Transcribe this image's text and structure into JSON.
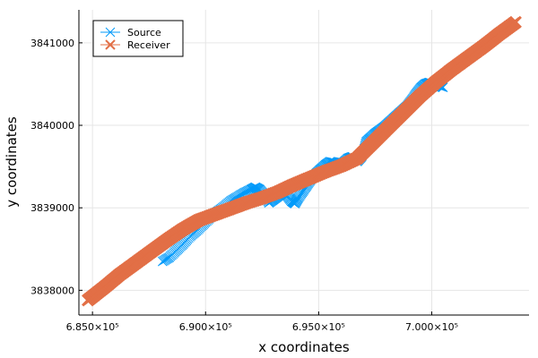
{
  "chart_data": {
    "type": "scatter",
    "xlabel": "x coordinates",
    "ylabel": "y coordinates",
    "xlim": [
      684400,
      704300
    ],
    "ylim": [
      3837700,
      3841400
    ],
    "x_ticks": [
      {
        "value": 685000,
        "label": "6.850×10⁵"
      },
      {
        "value": 690000,
        "label": "6.900×10⁵"
      },
      {
        "value": 695000,
        "label": "6.950×10⁵"
      },
      {
        "value": 700000,
        "label": "7.000×10⁵"
      }
    ],
    "y_ticks": [
      {
        "value": 3838000,
        "label": "3838000"
      },
      {
        "value": 3839000,
        "label": "3839000"
      },
      {
        "value": 3840000,
        "label": "3840000"
      },
      {
        "value": 3841000,
        "label": "3841000"
      }
    ],
    "grid": true,
    "legend_position": "top-left",
    "series": [
      {
        "name": "Source",
        "color": "#009AFA",
        "marker": "x",
        "x_range": [
          688100,
          700600
        ],
        "points": [
          [
            688100,
            3838350
          ],
          [
            688400,
            3838400
          ],
          [
            688700,
            3838480
          ],
          [
            689000,
            3838560
          ],
          [
            689300,
            3838650
          ],
          [
            689600,
            3838720
          ],
          [
            689900,
            3838800
          ],
          [
            690200,
            3838880
          ],
          [
            690500,
            3838950
          ],
          [
            690800,
            3839010
          ],
          [
            691100,
            3839080
          ],
          [
            691400,
            3839130
          ],
          [
            691700,
            3839180
          ],
          [
            692000,
            3839220
          ],
          [
            692200,
            3839250
          ],
          [
            692400,
            3839220
          ],
          [
            692600,
            3839150
          ],
          [
            692800,
            3839060
          ],
          [
            693000,
            3839100
          ],
          [
            693200,
            3839140
          ],
          [
            693400,
            3839180
          ],
          [
            693600,
            3839150
          ],
          [
            693800,
            3839080
          ],
          [
            693950,
            3839050
          ],
          [
            694100,
            3839120
          ],
          [
            694300,
            3839200
          ],
          [
            694500,
            3839280
          ],
          [
            694700,
            3839360
          ],
          [
            694900,
            3839420
          ],
          [
            695100,
            3839470
          ],
          [
            695300,
            3839520
          ],
          [
            695500,
            3839560
          ],
          [
            695700,
            3839550
          ],
          [
            695900,
            3839520
          ],
          [
            696100,
            3839550
          ],
          [
            696300,
            3839600
          ],
          [
            696500,
            3839620
          ],
          [
            696700,
            3839560
          ],
          [
            696900,
            3839620
          ],
          [
            697000,
            3839700
          ],
          [
            697100,
            3839800
          ],
          [
            697300,
            3839850
          ],
          [
            697500,
            3839900
          ],
          [
            697700,
            3839940
          ],
          [
            697900,
            3839980
          ],
          [
            698100,
            3840030
          ],
          [
            698300,
            3840080
          ],
          [
            698500,
            3840130
          ],
          [
            698700,
            3840180
          ],
          [
            698900,
            3840230
          ],
          [
            699100,
            3840300
          ],
          [
            699300,
            3840380
          ],
          [
            699500,
            3840450
          ],
          [
            699700,
            3840500
          ],
          [
            699900,
            3840520
          ],
          [
            700100,
            3840500
          ],
          [
            700300,
            3840480
          ],
          [
            700500,
            3840460
          ]
        ]
      },
      {
        "name": "Receiver",
        "color": "#E26F46",
        "marker": "x",
        "x_range": [
          684800,
          703700
        ],
        "points": [
          [
            684800,
            3837880
          ],
          [
            685500,
            3838030
          ],
          [
            686200,
            3838190
          ],
          [
            686900,
            3838330
          ],
          [
            687600,
            3838470
          ],
          [
            688300,
            3838610
          ],
          [
            689000,
            3838740
          ],
          [
            689700,
            3838850
          ],
          [
            690400,
            3838920
          ],
          [
            691100,
            3838990
          ],
          [
            691800,
            3839060
          ],
          [
            692500,
            3839120
          ],
          [
            693200,
            3839190
          ],
          [
            693900,
            3839280
          ],
          [
            694600,
            3839360
          ],
          [
            695300,
            3839440
          ],
          [
            696000,
            3839510
          ],
          [
            696700,
            3839600
          ],
          [
            697400,
            3839790
          ],
          [
            698100,
            3839980
          ],
          [
            698800,
            3840170
          ],
          [
            699500,
            3840360
          ],
          [
            700200,
            3840530
          ],
          [
            700900,
            3840680
          ],
          [
            701600,
            3840820
          ],
          [
            702300,
            3840960
          ],
          [
            703000,
            3841110
          ],
          [
            703700,
            3841250
          ]
        ]
      }
    ]
  }
}
